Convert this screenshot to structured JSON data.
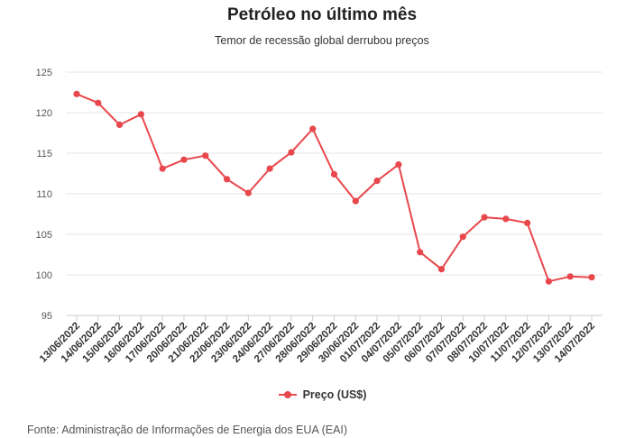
{
  "chart_data": {
    "type": "line",
    "title": "Petróleo no último mês",
    "subtitle": "Temor de recessão global derrubou preços",
    "source": "Fonte: Administração de Informações de Energia dos EUA (EAI)",
    "xlabel": "",
    "ylabel": "",
    "ylim": [
      95,
      125
    ],
    "yticks": [
      95,
      100,
      105,
      110,
      115,
      120,
      125
    ],
    "grid": true,
    "legend_position": "bottom",
    "colors": {
      "line": "#e8474c",
      "grid": "#e6e6e6",
      "axis": "#cccccc"
    },
    "categories": [
      "13/06/2022",
      "14/06/2022",
      "15/06/2022",
      "16/06/2022",
      "17/06/2022",
      "20/06/2022",
      "21/06/2022",
      "22/06/2022",
      "23/06/2022",
      "24/06/2022",
      "27/06/2022",
      "28/06/2022",
      "29/06/2022",
      "30/06/2022",
      "01/07/2022",
      "04/07/2022",
      "05/07/2022",
      "06/07/2022",
      "07/07/2022",
      "08/07/2022",
      "10/07/2022",
      "11/07/2022",
      "12/07/2022",
      "13/07/2022",
      "14/07/2022"
    ],
    "series": [
      {
        "name": "Preço (US$)",
        "values": [
          122.3,
          121.2,
          118.5,
          119.8,
          113.1,
          114.2,
          114.7,
          111.8,
          110.1,
          113.1,
          115.1,
          118.0,
          112.4,
          109.1,
          111.6,
          113.6,
          102.8,
          100.7,
          104.7,
          107.1,
          106.9,
          106.4,
          99.2,
          99.8,
          99.7
        ]
      }
    ]
  }
}
